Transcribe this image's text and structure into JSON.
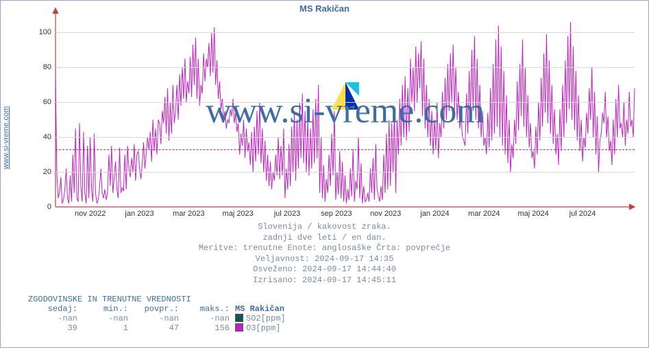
{
  "title": "MS Rakičan",
  "y_axis_source": "www.si-vreme.com",
  "watermark_text": "www.si-vreme.com",
  "watermark_color": "#3b6ea5",
  "refline": {
    "value": 33,
    "color": "#c02090"
  },
  "y_axis": {
    "min": 0,
    "max": 110,
    "grid_color": "#d8d8d8",
    "label_color": "#303030",
    "ticks": [
      0,
      20,
      40,
      60,
      80,
      100
    ]
  },
  "x_axis": {
    "label_color": "#303030",
    "tick_positions_pct": [
      6,
      14.5,
      23,
      31.5,
      40,
      48.5,
      57,
      65.5,
      74,
      82.5,
      91
    ],
    "tick_labels": [
      "nov 2022",
      "jan 2023",
      "mar 2023",
      "maj 2023",
      "jul 2023",
      "sep 2023",
      "nov 2023",
      "jan 2024",
      "mar 2024",
      "maj 2024",
      "jul 2024"
    ]
  },
  "axis_color": "#c04040",
  "subtitle_lines": [
    "Slovenija / kakovost zraka.",
    "zadnji dve leti / en dan.",
    "Meritve: trenutne  Enote: anglosaške  Črta: povprečje",
    "Veljavnost: 2024-09-17 14:35",
    "Osveženo: 2024-09-17 14:44:40",
    "Izrisano: 2024-09-17 14:45:11"
  ],
  "subtitle_color": "#7a8aa0",
  "series": {
    "color": "#c020c0",
    "stroke_width": 1,
    "points": [
      75,
      20,
      5,
      8,
      17,
      2,
      4,
      10,
      22,
      5,
      2,
      18,
      3,
      30,
      8,
      45,
      5,
      3,
      48,
      12,
      3,
      43,
      8,
      2,
      35,
      5,
      40,
      10,
      3,
      42,
      8,
      2,
      4,
      11,
      22,
      8,
      5,
      10,
      4,
      8,
      30,
      12,
      35,
      8,
      17,
      26,
      10,
      5,
      34,
      8,
      11,
      9,
      30,
      10,
      35,
      22,
      17,
      28,
      20,
      36,
      15,
      30,
      32,
      22,
      16,
      25,
      37,
      22,
      30,
      40,
      33,
      43,
      26,
      50,
      32,
      45,
      30,
      50,
      48,
      36,
      55,
      48,
      63,
      42,
      68,
      38,
      60,
      42,
      70,
      48,
      55,
      70,
      50,
      76,
      58,
      80,
      62,
      85,
      60,
      72,
      65,
      86,
      63,
      93,
      70,
      97,
      62,
      85,
      58,
      70,
      65,
      88,
      72,
      85,
      80,
      94,
      75,
      100,
      77,
      103,
      70,
      84,
      62,
      72,
      56,
      62,
      50,
      55,
      45,
      50,
      48,
      56,
      52,
      62,
      48,
      54,
      43,
      48,
      30,
      42,
      35,
      50,
      28,
      45,
      32,
      37,
      24,
      43,
      20,
      46,
      26,
      55,
      30,
      60,
      25,
      45,
      20,
      38,
      15,
      30,
      12,
      26,
      10,
      20,
      15,
      30,
      18,
      40,
      16,
      35,
      18,
      45,
      5,
      22,
      10,
      36,
      12,
      46,
      20,
      55,
      15,
      50,
      22,
      60,
      28,
      65,
      25,
      55,
      20,
      50,
      18,
      45,
      22,
      56,
      25,
      62,
      28,
      70,
      8,
      40,
      5,
      24,
      3,
      16,
      8,
      30,
      12,
      42,
      18,
      55,
      4,
      20,
      7,
      32,
      5,
      26,
      3,
      18,
      2,
      10,
      4,
      22,
      6,
      33,
      3,
      15,
      10,
      40,
      5,
      25,
      2,
      12,
      3,
      4,
      8,
      3,
      22,
      8,
      28,
      4,
      36,
      10,
      6,
      3,
      12,
      4,
      30,
      8,
      42,
      10,
      50,
      12,
      48,
      20,
      55,
      8,
      50,
      30,
      62,
      35,
      70,
      40,
      75,
      38,
      68,
      43,
      85,
      60,
      80,
      55,
      92,
      60,
      88,
      68,
      95,
      52,
      85,
      45,
      70,
      40,
      62,
      35,
      55,
      30,
      50,
      33,
      60,
      28,
      48,
      40,
      66,
      45,
      74,
      50,
      82,
      55,
      88,
      60,
      93,
      55,
      80,
      50,
      66,
      45,
      52,
      40,
      38,
      35,
      65,
      42,
      78,
      50,
      90,
      55,
      98,
      50,
      85,
      45,
      70,
      40,
      55,
      35,
      40,
      30,
      54,
      34,
      68,
      38,
      82,
      42,
      96,
      46,
      104,
      40,
      92,
      35,
      78,
      30,
      64,
      25,
      50,
      20,
      36,
      28,
      50,
      36,
      72,
      44,
      82,
      52,
      96,
      46,
      80,
      40,
      64,
      34,
      48,
      28,
      32,
      22,
      46,
      30,
      60,
      38,
      74,
      46,
      88,
      54,
      99,
      48,
      84,
      42,
      70,
      36,
      56,
      30,
      42,
      24,
      56,
      32,
      70,
      40,
      84,
      48,
      98,
      56,
      106,
      50,
      92,
      44,
      78,
      38,
      64,
      32,
      50,
      26,
      40,
      34,
      54,
      42,
      68,
      50,
      80,
      40,
      66,
      30,
      52,
      20,
      38,
      42,
      54,
      48,
      66,
      40,
      52,
      32,
      38,
      24,
      50,
      30,
      62,
      40,
      70,
      45,
      48,
      40,
      60,
      35,
      50,
      42,
      66,
      46,
      50,
      40,
      68
    ]
  },
  "table": {
    "title": "ZGODOVINSKE IN TRENUTNE VREDNOSTI",
    "title_color": "#3b6ea5",
    "headers": [
      "sedaj:",
      "min.:",
      "povpr.:",
      "maks.:"
    ],
    "header_color": "#3b6ea5",
    "value_color": "#7a8aa0",
    "rows": [
      {
        "vals": [
          "-nan",
          "-nan",
          "-nan",
          "-nan"
        ],
        "color": "#0a5a5a",
        "label": "SO2[ppm]"
      },
      {
        "vals": [
          "39",
          "1",
          "47",
          "156"
        ],
        "color": "#c020c0",
        "label": "O3[ppm]"
      }
    ],
    "legend_name_label": "MS Rakičan"
  }
}
